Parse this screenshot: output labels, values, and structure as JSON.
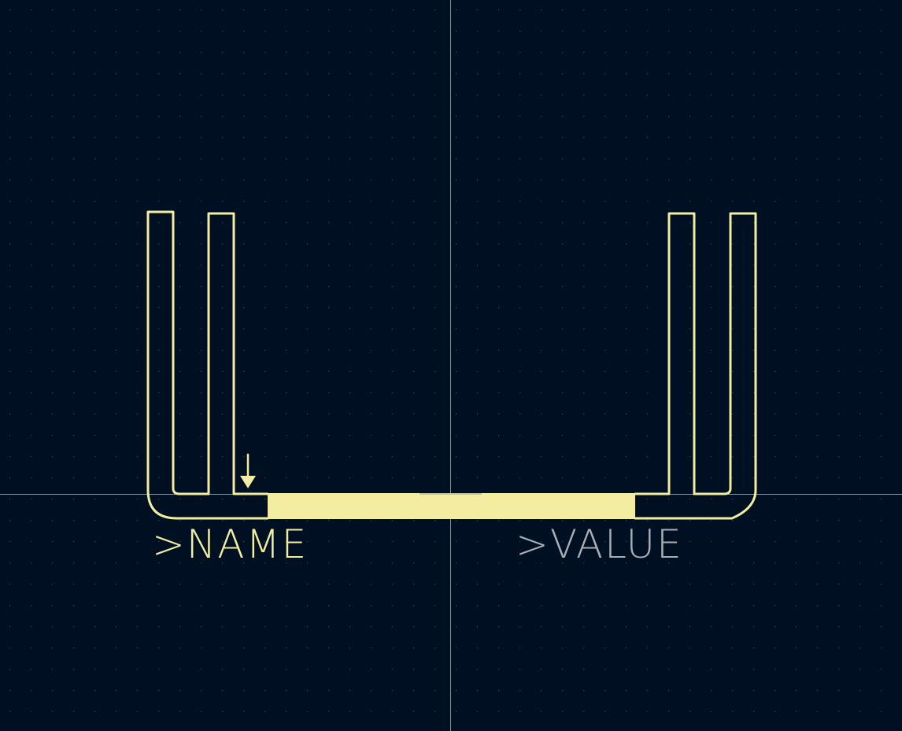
{
  "colors": {
    "background": "#001023",
    "grid_dot": "#3a4a5c",
    "crosshair": "#8a95a0",
    "silkscreen": "#f2eda1",
    "value_text": "#a8aeb5"
  },
  "labels": {
    "name": ">NAME",
    "value": ">VALUE"
  },
  "icons": {
    "marker": "down-arrow-icon"
  }
}
